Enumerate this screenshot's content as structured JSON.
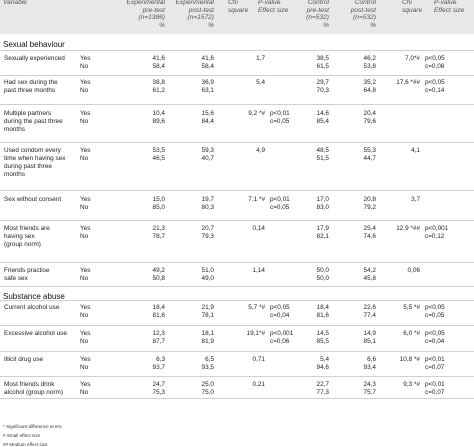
{
  "header": {
    "variable": "Variable",
    "exp_pre": [
      "Experimental",
      "pre-test",
      "(n=1386)",
      "%"
    ],
    "exp_post": [
      "Experimental",
      "post-test",
      "(n=1572)",
      "%"
    ],
    "chi1": [
      "Chi",
      "square"
    ],
    "pval1": [
      "P-value",
      "Effect size"
    ],
    "ctrl_pre": [
      "Control",
      "pre-test",
      "(n=532)",
      "%"
    ],
    "ctrl_post": [
      "Control",
      "post-test",
      "(n=532)",
      "%"
    ],
    "chi2": [
      "Chi",
      "square"
    ],
    "pval2": [
      "P-value",
      "Effect size"
    ]
  },
  "sections": [
    {
      "title": "Sexual behaviour",
      "rows": [
        {
          "label": [
            "Sexually experienced"
          ],
          "yes": "Yes",
          "no": "No",
          "exp_pre": [
            "41,6",
            "58,4"
          ],
          "exp_post": [
            "41,6",
            "58,4"
          ],
          "chi1": "1,7",
          "p1": [
            "",
            ""
          ],
          "ctrl_pre": [
            "38,5",
            "61,5"
          ],
          "ctrl_post": [
            "46,2",
            "53,8"
          ],
          "chi2": "7,0*#",
          "p2": [
            "p<0,05",
            "c=0,08"
          ]
        },
        {
          "label": [
            "Had sex during the",
            "past three months"
          ],
          "yes": "Yes",
          "no": "No",
          "exp_pre": [
            "38,8",
            "61,2"
          ],
          "exp_post": [
            "36,9",
            "63,1"
          ],
          "chi1": "5,4",
          "p1": [
            "",
            ""
          ],
          "ctrl_pre": [
            "29,7",
            "70,3"
          ],
          "ctrl_post": [
            "35,2",
            "64,8"
          ],
          "chi2": "17,6 *##",
          "p2": [
            "p<0,05",
            "c=0,14"
          ]
        },
        {
          "label": [
            "Multiple partners",
            "during the past three",
            "months"
          ],
          "yes": "Yes",
          "no": "No",
          "exp_pre": [
            "10,4",
            "89,6"
          ],
          "exp_post": [
            "15,6",
            "84,4"
          ],
          "chi1": "9,2 *#",
          "p1": [
            "p<0,01",
            "c=0,05"
          ],
          "ctrl_pre": [
            "14,6",
            "85,4"
          ],
          "ctrl_post": [
            "20,4",
            "79,6"
          ],
          "chi2": "",
          "p2": [
            "",
            ""
          ]
        },
        {
          "label": [
            "Used condom every",
            "time when having sex",
            "during past three",
            "months"
          ],
          "yes": "Yes",
          "no": "No",
          "exp_pre": [
            "53,5",
            "46,5"
          ],
          "exp_post": [
            "59,3",
            "40,7"
          ],
          "chi1": "4,9",
          "p1": [
            "",
            ""
          ],
          "ctrl_pre": [
            "48,5",
            "51,5"
          ],
          "ctrl_post": [
            "55,3",
            "44,7"
          ],
          "chi2": "4,1",
          "p2": [
            "",
            ""
          ]
        },
        {
          "label": [
            "Sex without consent"
          ],
          "yes": "Yes",
          "no": "No",
          "exp_pre": [
            "15,0",
            "85,0"
          ],
          "exp_post": [
            "19,7",
            "80,3"
          ],
          "chi1": "7,1 *#",
          "p1": [
            "p<0,01",
            "c=0,05"
          ],
          "ctrl_pre": [
            "17,0",
            "83,0"
          ],
          "ctrl_post": [
            "20,8",
            "79,2"
          ],
          "chi2": "3,7",
          "p2": [
            "",
            ""
          ]
        },
        {
          "label": [
            "Most friends are",
            "having sex",
            "(group norm)"
          ],
          "yes": "Yes",
          "no": "No",
          "exp_pre": [
            "21,3",
            "78,7"
          ],
          "exp_post": [
            "20,7",
            "79,3"
          ],
          "chi1": "0,14",
          "p1": [
            "",
            ""
          ],
          "ctrl_pre": [
            "17,9",
            "82,1"
          ],
          "ctrl_post": [
            "25,4",
            "74,6"
          ],
          "chi2": "12,9 *##",
          "p2": [
            "p<0,001",
            "c=0,12"
          ]
        },
        {
          "label": [
            "Friends practise",
            "safe sex"
          ],
          "yes": "Yes",
          "no": "No",
          "exp_pre": [
            "49,2",
            "50,8"
          ],
          "exp_post": [
            "51,0",
            "49,0"
          ],
          "chi1": "1,14",
          "p1": [
            "",
            ""
          ],
          "ctrl_pre": [
            "50,0",
            "50,0"
          ],
          "ctrl_post": [
            "54,2",
            "45,8"
          ],
          "chi2": "0,06",
          "p2": [
            "",
            ""
          ]
        }
      ]
    },
    {
      "title": "Substance abuse",
      "rows": [
        {
          "label": [
            "Current alcohol use"
          ],
          "yes": "Yes",
          "no": "No",
          "exp_pre": [
            "18,4",
            "81,6"
          ],
          "exp_post": [
            "21,9",
            "78,1"
          ],
          "chi1": "5,7 *#",
          "p1": [
            "p<0,05",
            "c=0,04"
          ],
          "ctrl_pre": [
            "18,4",
            "81,6"
          ],
          "ctrl_post": [
            "22,6",
            "77,4"
          ],
          "chi2": "5,5 *#",
          "p2": [
            "p<0,05",
            "c=0,05"
          ]
        },
        {
          "label": [
            "Excessive alcohol use"
          ],
          "yes": "Yes",
          "no": "No",
          "exp_pre": [
            "12,3",
            "87,7"
          ],
          "exp_post": [
            "18,1",
            "81,9"
          ],
          "chi1": "19,1*#",
          "p1": [
            "p<0,001",
            "c=0,06"
          ],
          "ctrl_pre": [
            "14,5",
            "85,5"
          ],
          "ctrl_post": [
            "14,9",
            "85,1"
          ],
          "chi2": "6,0 *#",
          "p2": [
            "p<0,05",
            "c=0,04"
          ]
        },
        {
          "label": [
            "Illicit drug use"
          ],
          "yes": "Yes",
          "no": "No",
          "exp_pre": [
            "6,3",
            "93,7"
          ],
          "exp_post": [
            "6,5",
            "93,5"
          ],
          "chi1": "0,71",
          "p1": [
            "",
            ""
          ],
          "ctrl_pre": [
            "5,4",
            "94,6"
          ],
          "ctrl_post": [
            "6,6",
            "93,4"
          ],
          "chi2": "10,8 *#",
          "p2": [
            "p<0,01",
            "c=0,07"
          ]
        },
        {
          "label": [
            "Most friends drink",
            "alcohol (group norm)"
          ],
          "yes": "Yes",
          "no": "No",
          "exp_pre": [
            "24,7",
            "75,3"
          ],
          "exp_post": [
            "25,0",
            "75,0"
          ],
          "chi1": "0,21",
          "p1": [
            "",
            ""
          ],
          "ctrl_pre": [
            "22,7",
            "77,3"
          ],
          "ctrl_post": [
            "24,3",
            "75,7"
          ],
          "chi2": "9,3 *#",
          "p2": [
            "p<0,01",
            "c=0,07"
          ]
        }
      ]
    }
  ],
  "notes": [
    "* Significant difference at 5%",
    "# Small effect size",
    "## Medium effect size"
  ]
}
